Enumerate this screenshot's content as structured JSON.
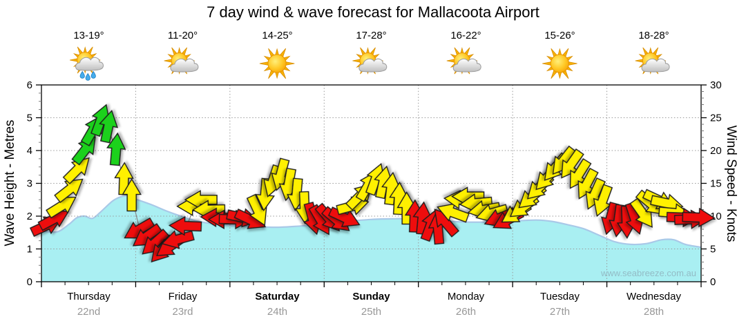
{
  "title": "7 day wind & wave forecast for Mallacoota Airport",
  "watermark": "www.seabreeze.com.au",
  "days": [
    {
      "name": "Thursday",
      "date": "22nd",
      "temp": "13-19°",
      "icon": "sun-cloud-rain",
      "weekend": false
    },
    {
      "name": "Friday",
      "date": "23rd",
      "temp": "11-20°",
      "icon": "sun-cloud",
      "weekend": false
    },
    {
      "name": "Saturday",
      "date": "24th",
      "temp": "14-25°",
      "icon": "sun",
      "weekend": true
    },
    {
      "name": "Sunday",
      "date": "25th",
      "temp": "17-28°",
      "icon": "sun-cloud",
      "weekend": true
    },
    {
      "name": "Monday",
      "date": "26th",
      "temp": "16-22°",
      "icon": "sun-cloud",
      "weekend": false
    },
    {
      "name": "Tuesday",
      "date": "27th",
      "temp": "15-26°",
      "icon": "sun",
      "weekend": false
    },
    {
      "name": "Wednesday",
      "date": "28th",
      "temp": "18-28°",
      "icon": "sun-cloud",
      "weekend": false
    }
  ],
  "chart_data": {
    "type": "area+wind-arrows",
    "title": "7 day wind & wave forecast for Mallacoota Airport",
    "left_axis": {
      "label": "Wave Height - Metres",
      "min": 0,
      "max": 6,
      "major_step": 1,
      "minor_step": 0.25
    },
    "right_axis": {
      "label": "Wind Speed - Knots",
      "min": 0,
      "max": 30,
      "major_step": 5,
      "minor_step": 1
    },
    "x_axis": {
      "total_days": 7,
      "major_tick_hours": 24,
      "minor_tick_hours": 6,
      "grid_at_day_boundaries": true
    },
    "wave_height_m": [
      [
        0,
        1.55
      ],
      [
        4,
        1.52
      ],
      [
        7,
        1.75
      ],
      [
        9,
        1.95
      ],
      [
        11,
        2.0
      ],
      [
        13,
        1.93
      ],
      [
        15,
        2.12
      ],
      [
        18,
        2.45
      ],
      [
        20,
        2.58
      ],
      [
        22,
        2.62
      ],
      [
        24,
        2.52
      ],
      [
        28,
        2.35
      ],
      [
        32,
        2.15
      ],
      [
        36,
        1.98
      ],
      [
        40,
        1.84
      ],
      [
        44,
        1.76
      ],
      [
        48,
        1.72
      ],
      [
        54,
        1.68
      ],
      [
        60,
        1.66
      ],
      [
        66,
        1.7
      ],
      [
        72,
        1.76
      ],
      [
        78,
        1.84
      ],
      [
        84,
        1.9
      ],
      [
        90,
        1.92
      ],
      [
        96,
        1.93
      ],
      [
        102,
        1.86
      ],
      [
        108,
        1.82
      ],
      [
        114,
        1.82
      ],
      [
        120,
        1.85
      ],
      [
        126,
        1.88
      ],
      [
        130,
        1.84
      ],
      [
        134,
        1.74
      ],
      [
        138,
        1.62
      ],
      [
        142,
        1.42
      ],
      [
        146,
        1.22
      ],
      [
        150,
        1.14
      ],
      [
        154,
        1.16
      ],
      [
        158,
        1.28
      ],
      [
        161,
        1.28
      ],
      [
        164,
        1.14
      ],
      [
        168,
        1.05
      ]
    ],
    "wind_points_h_kn_dir": [
      [
        1,
        8.5,
        25
      ],
      [
        3,
        9.5,
        28
      ],
      [
        5,
        11.5,
        32
      ],
      [
        7,
        14,
        38
      ],
      [
        9,
        17,
        45
      ],
      [
        11,
        20,
        52
      ],
      [
        13,
        23,
        60
      ],
      [
        15,
        24.5,
        70
      ],
      [
        17,
        23.5,
        78
      ],
      [
        19,
        20,
        85
      ],
      [
        21,
        15.5,
        88
      ],
      [
        23,
        13,
        90
      ],
      [
        25,
        8,
        210
      ],
      [
        27,
        7,
        215
      ],
      [
        29,
        6,
        222
      ],
      [
        31,
        5,
        228
      ],
      [
        33,
        5.5,
        215
      ],
      [
        35,
        6.5,
        195
      ],
      [
        37,
        8.5,
        178
      ],
      [
        39,
        11.5,
        180
      ],
      [
        41,
        12.5,
        180
      ],
      [
        43,
        11,
        181
      ],
      [
        45,
        9.8,
        178
      ],
      [
        47,
        9.5,
        180
      ],
      [
        49,
        9.5,
        358
      ],
      [
        51,
        9.8,
        348
      ],
      [
        53,
        9.5,
        335
      ],
      [
        55,
        11,
        295
      ],
      [
        57,
        13.5,
        265
      ],
      [
        59,
        15.5,
        252
      ],
      [
        61,
        16.5,
        255
      ],
      [
        63,
        15,
        260
      ],
      [
        65,
        13.5,
        265
      ],
      [
        67,
        11.5,
        272
      ],
      [
        69,
        9.8,
        285
      ],
      [
        71,
        9.5,
        300
      ],
      [
        73,
        9.8,
        310
      ],
      [
        75,
        9.5,
        320
      ],
      [
        77,
        9.8,
        335
      ],
      [
        79,
        11.5,
        15
      ],
      [
        81,
        13,
        45
      ],
      [
        83,
        14.5,
        60
      ],
      [
        85,
        15.5,
        70
      ],
      [
        87,
        15,
        78
      ],
      [
        89,
        14,
        83
      ],
      [
        91,
        12.5,
        87
      ],
      [
        93,
        11,
        90
      ],
      [
        95,
        9.8,
        88
      ],
      [
        97,
        9.5,
        85
      ],
      [
        99,
        8.5,
        70
      ],
      [
        101,
        8,
        95
      ],
      [
        103,
        9,
        130
      ],
      [
        105,
        10.5,
        160
      ],
      [
        107,
        12.5,
        175
      ],
      [
        109,
        13,
        180
      ],
      [
        111,
        12,
        185
      ],
      [
        113,
        11,
        190
      ],
      [
        115,
        10.5,
        196
      ],
      [
        117,
        9.8,
        202
      ],
      [
        119,
        9.5,
        208
      ],
      [
        121,
        10.5,
        212
      ],
      [
        123,
        11.5,
        216
      ],
      [
        125,
        13,
        220
      ],
      [
        127,
        14.5,
        224
      ],
      [
        129,
        16,
        227
      ],
      [
        131,
        17.5,
        230
      ],
      [
        133,
        18.5,
        232
      ],
      [
        135,
        18,
        235
      ],
      [
        137,
        16.5,
        238
      ],
      [
        139,
        15,
        242
      ],
      [
        141,
        13.5,
        246
      ],
      [
        143,
        12.5,
        250
      ],
      [
        145,
        9.8,
        255
      ],
      [
        147,
        9.5,
        262
      ],
      [
        149,
        9.3,
        272
      ],
      [
        151,
        9.8,
        288
      ],
      [
        153,
        10.5,
        305
      ],
      [
        155,
        12,
        320
      ],
      [
        157,
        12.5,
        335
      ],
      [
        159,
        12,
        348
      ],
      [
        161,
        10.5,
        355
      ],
      [
        163,
        9.8,
        358
      ],
      [
        165,
        9.5,
        2
      ],
      [
        167,
        9.8,
        358
      ]
    ],
    "wind_color_rules": {
      "red": "knots < 10",
      "yellow": "10 <= knots < 20",
      "green": "knots >= 20"
    },
    "colors": {
      "wave_fill": "#a9eff2",
      "wave_edge": "#a9c9e8",
      "arrow_red": "#ee1111",
      "arrow_yellow": "#fff000",
      "arrow_green": "#1ad11a",
      "arrow_outline": "#1a1a1a",
      "wind_line": "#888888",
      "grid": "#999999",
      "frame": "#000000",
      "date_text": "#979797"
    }
  }
}
